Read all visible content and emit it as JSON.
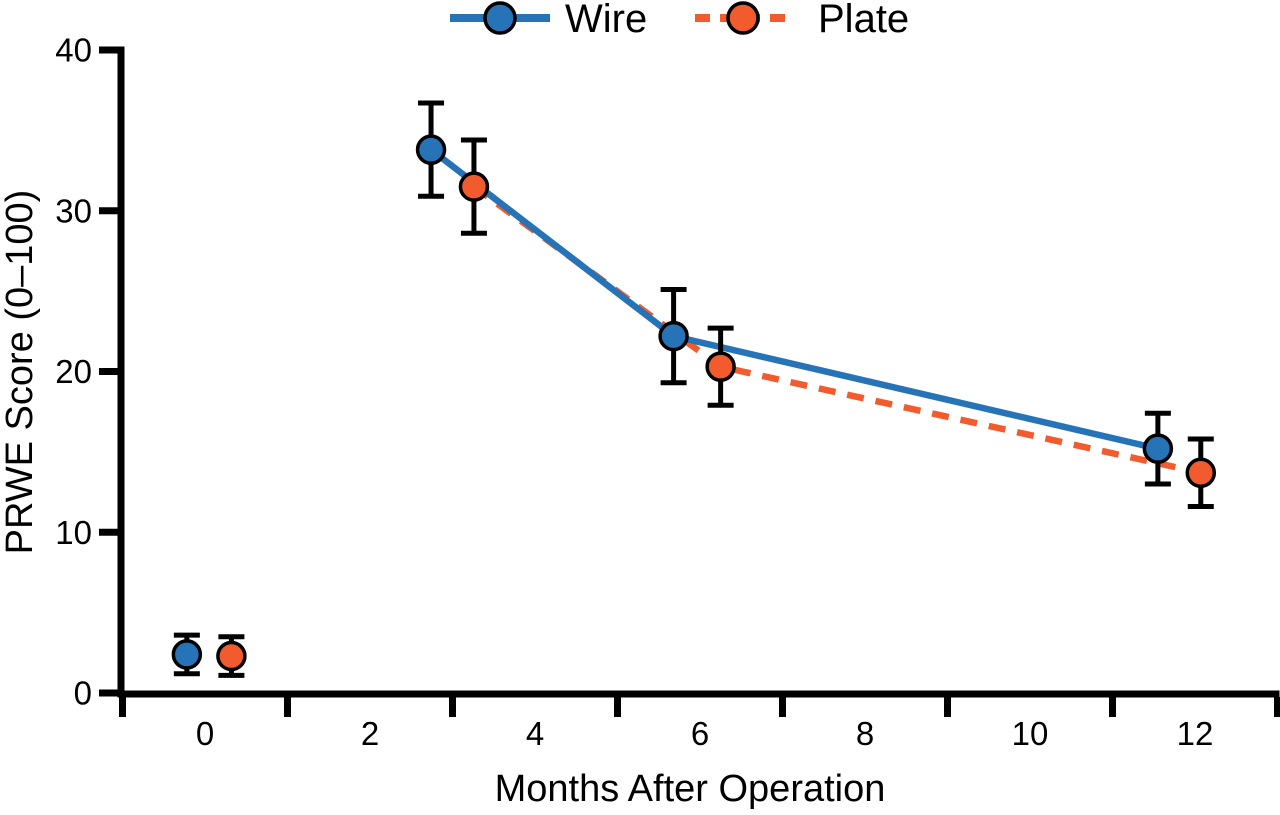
{
  "figure": {
    "background": "#ffffff",
    "text_color": "#000000",
    "axis_color": "#000000"
  },
  "legend": {
    "position": "top-center",
    "items": [
      {
        "label": "Wire",
        "color": "#2673b8",
        "line_style": "solid",
        "marker": "circle"
      },
      {
        "label": "Plate",
        "color": "#f15b2d",
        "line_style": "dashed",
        "marker": "circle"
      }
    ]
  },
  "chart_data": {
    "type": "line",
    "title": "",
    "xlabel": "Months After Operation",
    "ylabel": "PRWE Score (0–100)",
    "xlim": [
      -1,
      13
    ],
    "ylim": [
      0,
      40
    ],
    "x_major_labels": [
      0,
      2,
      4,
      6,
      8,
      10,
      12
    ],
    "x_tick_marks": [
      -1,
      1,
      3,
      5,
      7,
      9,
      11,
      13
    ],
    "y_ticks": [
      0,
      10,
      20,
      30,
      40
    ],
    "grid": false,
    "error_bars": true,
    "legend_position": "top-center",
    "series": [
      {
        "name": "Wire",
        "color": "#2673b8",
        "line_style": "solid",
        "marker": "circle",
        "nominal_months": [
          0,
          3,
          6,
          12
        ],
        "x_plotted": [
          -0.22,
          2.74,
          5.68,
          11.55
        ],
        "y": [
          2.4,
          33.8,
          22.2,
          15.2
        ],
        "error": [
          1.2,
          2.9,
          2.9,
          2.2
        ],
        "line_starts_at_index": 1
      },
      {
        "name": "Plate",
        "color": "#f15b2d",
        "line_style": "dashed",
        "marker": "circle",
        "nominal_months": [
          0,
          3,
          6,
          12
        ],
        "x_plotted": [
          0.32,
          3.26,
          6.25,
          12.07
        ],
        "y": [
          2.3,
          31.5,
          20.3,
          13.7
        ],
        "error": [
          1.2,
          2.9,
          2.4,
          2.1
        ],
        "line_starts_at_index": 1
      }
    ]
  }
}
